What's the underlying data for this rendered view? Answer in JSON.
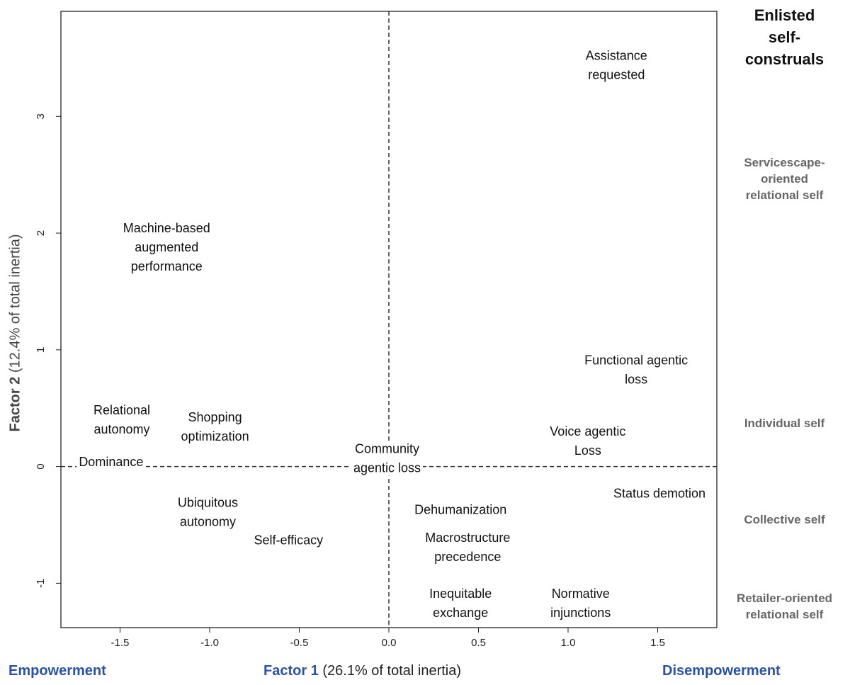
{
  "chart_data": {
    "type": "scatter",
    "xlabel_bold": "Factor 1",
    "xlabel_rest": " (26.1% of total inertia)",
    "ylabel_bold": "Factor 2",
    "ylabel_rest": " (12.4% of total inertia)",
    "xlim": [
      -1.83,
      1.83
    ],
    "ylim": [
      -1.38,
      3.9
    ],
    "x_ticks": [
      -1.5,
      -1.0,
      -0.5,
      0.0,
      0.5,
      1.0,
      1.5
    ],
    "x_tick_labels": [
      "-1.5",
      "-1.0",
      "-0.5",
      "0.0",
      "0.5",
      "1.0",
      "1.5"
    ],
    "y_ticks": [
      -1,
      0,
      1,
      2,
      3
    ],
    "y_tick_labels": [
      "-1",
      "0",
      "1",
      "2",
      "3"
    ],
    "reference_lines": {
      "x": 0,
      "y": 0,
      "style": "dashed"
    },
    "points": [
      {
        "lines": [
          "Assistance",
          "requested"
        ],
        "x": 1.27,
        "y": 3.44
      },
      {
        "lines": [
          "Machine-based",
          "augmented",
          "performance"
        ],
        "x": -1.24,
        "y": 1.88
      },
      {
        "lines": [
          "Functional agentic",
          "loss"
        ],
        "x": 1.38,
        "y": 0.83
      },
      {
        "lines": [
          "Relational",
          "autonomy"
        ],
        "x": -1.49,
        "y": 0.4
      },
      {
        "lines": [
          "Shopping",
          "optimization"
        ],
        "x": -0.97,
        "y": 0.34
      },
      {
        "lines": [
          "Voice agentic",
          "Loss"
        ],
        "x": 1.11,
        "y": 0.22
      },
      {
        "lines": [
          "Dominance"
        ],
        "x": -1.55,
        "y": 0.04
      },
      {
        "lines": [
          "Community",
          "agentic loss"
        ],
        "x": -0.01,
        "y": 0.07
      },
      {
        "lines": [
          "Status demotion"
        ],
        "x": 1.51,
        "y": -0.23
      },
      {
        "lines": [
          "Ubiquitous",
          "autonomy"
        ],
        "x": -1.01,
        "y": -0.39
      },
      {
        "lines": [
          "Dehumanization"
        ],
        "x": 0.4,
        "y": -0.37
      },
      {
        "lines": [
          "Self-efficacy"
        ],
        "x": -0.56,
        "y": -0.63
      },
      {
        "lines": [
          "Macrostructure",
          "precedence"
        ],
        "x": 0.44,
        "y": -0.69
      },
      {
        "lines": [
          "Inequitable",
          "exchange"
        ],
        "x": 0.4,
        "y": -1.17
      },
      {
        "lines": [
          "Normative",
          "injunctions"
        ],
        "x": 1.07,
        "y": -1.17
      }
    ]
  },
  "side_panel": {
    "title_lines": [
      "Enlisted",
      "self-",
      "construals"
    ],
    "categories": [
      {
        "lines": [
          "Servicescape-",
          "oriented",
          "relational self"
        ]
      },
      {
        "lines": [
          "Individual self"
        ]
      },
      {
        "lines": [
          "Collective self"
        ]
      },
      {
        "lines": [
          "Retailer-oriented",
          "relational self"
        ]
      }
    ]
  },
  "bottom": {
    "left": "Empowerment",
    "right": "Disempowerment"
  },
  "colors": {
    "accent_blue": "#2a52a0",
    "side_gray": "#666666",
    "text": "#111111"
  }
}
